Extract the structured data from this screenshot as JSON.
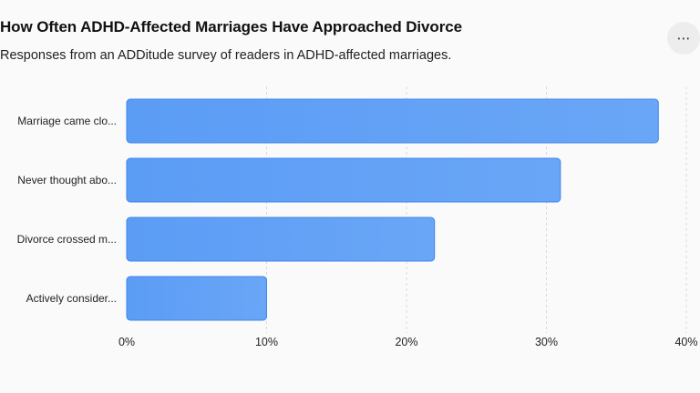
{
  "header": {
    "title": "How Often ADHD-Affected Marriages Have Approached Divorce",
    "subtitle": "Responses from an ADDitude survey of readers in ADHD-affected marriages.",
    "menu_icon": "ellipsis-icon",
    "menu_glyph": "⋯"
  },
  "colors": {
    "bar_fill": "#5b9cf5",
    "bar_fill_top": "#6aa6f7",
    "bar_stroke": "#3f86ea",
    "grid": "#d9d9d9",
    "background": "#fafafa"
  },
  "chart_data": {
    "type": "bar",
    "orientation": "horizontal",
    "categories": [
      "Marriage came clo...",
      "Never thought abo...",
      "Divorce crossed m...",
      "Actively consider..."
    ],
    "values": [
      38,
      31,
      22,
      10
    ],
    "xlim": [
      0,
      40
    ],
    "xticks": [
      0,
      10,
      20,
      30,
      40
    ],
    "tick_labels": [
      "0%",
      "10%",
      "20%",
      "30%",
      "40%"
    ],
    "grid": true,
    "grid_style": "dashed-vertical",
    "legend": "none"
  }
}
